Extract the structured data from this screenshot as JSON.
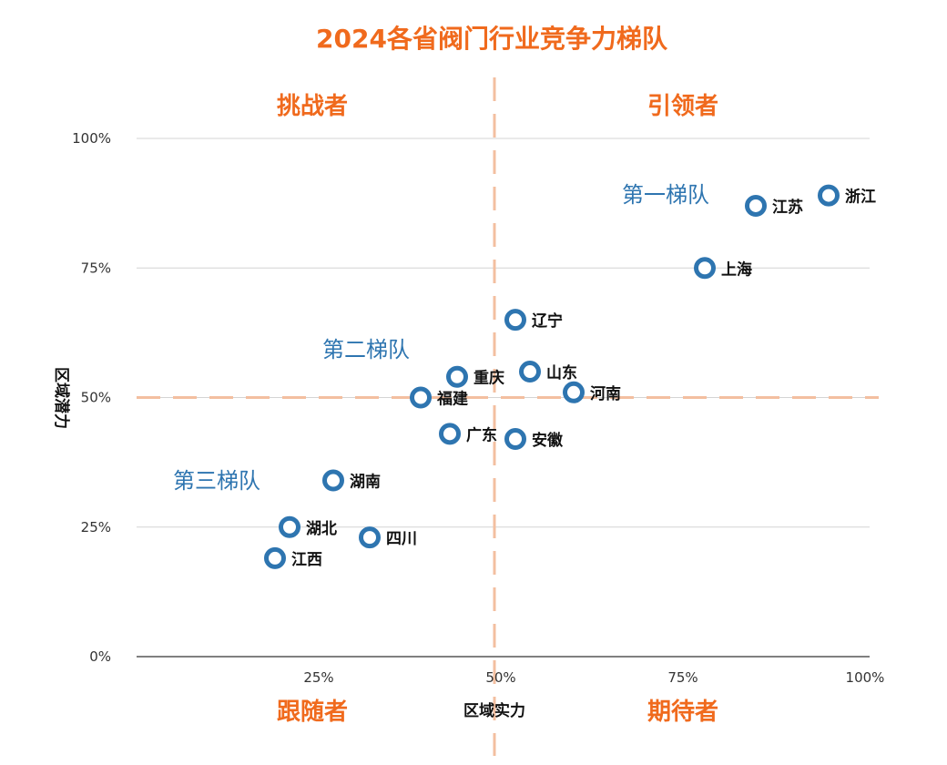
{
  "chart_data": {
    "type": "scatter",
    "title": "2024各省阀门行业竞争力梯队",
    "xlabel": "区域实力",
    "ylabel": "区域潜力",
    "xlim": [
      0,
      100
    ],
    "ylim": [
      0,
      100
    ],
    "x_ticks": [
      "25%",
      "50%",
      "75%",
      "100%"
    ],
    "y_ticks": [
      "0%",
      "25%",
      "50%",
      "75%",
      "100%"
    ],
    "grid": "horizontal",
    "divider_x": 50,
    "divider_y": 50,
    "quadrants": {
      "top_left": "挑战者",
      "top_right": "引领者",
      "bottom_left": "跟随者",
      "bottom_right": "期待者"
    },
    "tiers": [
      "第一梯队",
      "第二梯队",
      "第三梯队"
    ],
    "points": [
      {
        "name": "浙江",
        "x": 95,
        "y": 89
      },
      {
        "name": "江苏",
        "x": 85,
        "y": 87
      },
      {
        "name": "上海",
        "x": 78,
        "y": 75
      },
      {
        "name": "辽宁",
        "x": 52,
        "y": 65
      },
      {
        "name": "山东",
        "x": 54,
        "y": 55
      },
      {
        "name": "河南",
        "x": 60,
        "y": 51
      },
      {
        "name": "重庆",
        "x": 44,
        "y": 54
      },
      {
        "name": "福建",
        "x": 39,
        "y": 50
      },
      {
        "name": "广东",
        "x": 43,
        "y": 43
      },
      {
        "name": "安徽",
        "x": 52,
        "y": 42
      },
      {
        "name": "湖南",
        "x": 27,
        "y": 34
      },
      {
        "name": "湖北",
        "x": 21,
        "y": 25
      },
      {
        "name": "四川",
        "x": 32,
        "y": 23
      },
      {
        "name": "江西",
        "x": 19,
        "y": 19
      }
    ]
  },
  "colors": {
    "accent": "#f06a1d",
    "point": "#2e75b0",
    "tier_text": "#2e75b0",
    "divider": "#f3bfa0"
  }
}
